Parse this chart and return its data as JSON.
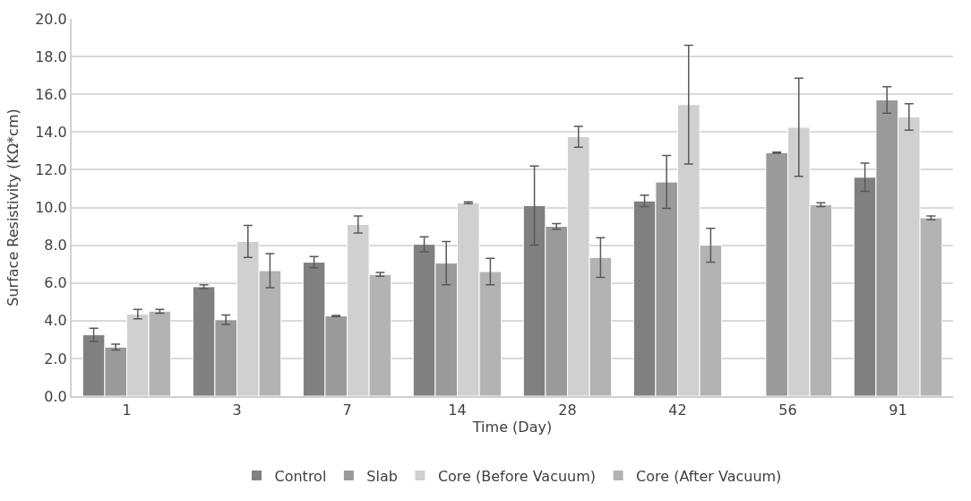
{
  "chart_data": {
    "type": "bar",
    "xlabel": "Time (Day)",
    "ylabel": "Surface Resistivity (KΩ*cm)",
    "categories": [
      "1",
      "3",
      "7",
      "14",
      "28",
      "42",
      "56",
      "91"
    ],
    "ylim": [
      0,
      20
    ],
    "yticks": [
      {
        "value": 0,
        "label": "0.0"
      },
      {
        "value": 2,
        "label": "2.0"
      },
      {
        "value": 4,
        "label": "4.0"
      },
      {
        "value": 6,
        "label": "6.0"
      },
      {
        "value": 8,
        "label": "8.0"
      },
      {
        "value": 10,
        "label": "10.0"
      },
      {
        "value": 12,
        "label": "12.0"
      },
      {
        "value": 14,
        "label": "14.0"
      },
      {
        "value": 16,
        "label": "16.0"
      },
      {
        "value": 18,
        "label": "18.0"
      },
      {
        "value": 20,
        "label": "20.0"
      }
    ],
    "grid": "y",
    "legend": "bottom",
    "series": [
      {
        "name": "Control",
        "color": "#808080",
        "values": [
          3.25,
          5.8,
          7.1,
          8.05,
          10.1,
          10.35,
          null,
          11.6
        ],
        "errors": [
          0.35,
          0.1,
          0.3,
          0.4,
          2.1,
          0.3,
          null,
          0.75
        ]
      },
      {
        "name": "Slab",
        "color": "#9a9a9a",
        "values": [
          2.6,
          4.05,
          4.25,
          7.05,
          9.0,
          11.35,
          12.9,
          15.7
        ],
        "errors": [
          0.15,
          0.25,
          0.03,
          1.15,
          0.15,
          1.4,
          0.03,
          0.7
        ]
      },
      {
        "name": "Core (Before Vacuum)",
        "color": "#d0d0d0",
        "values": [
          4.35,
          8.2,
          9.1,
          10.25,
          13.75,
          15.45,
          14.25,
          14.8
        ],
        "errors": [
          0.25,
          0.85,
          0.45,
          0.05,
          0.55,
          3.15,
          2.6,
          0.7
        ]
      },
      {
        "name": "Core (After Vacuum)",
        "color": "#b3b3b3",
        "values": [
          4.5,
          6.65,
          6.45,
          6.6,
          7.35,
          8.0,
          10.15,
          9.45
        ],
        "errors": [
          0.1,
          0.9,
          0.1,
          0.7,
          1.05,
          0.9,
          0.1,
          0.1
        ]
      }
    ]
  }
}
